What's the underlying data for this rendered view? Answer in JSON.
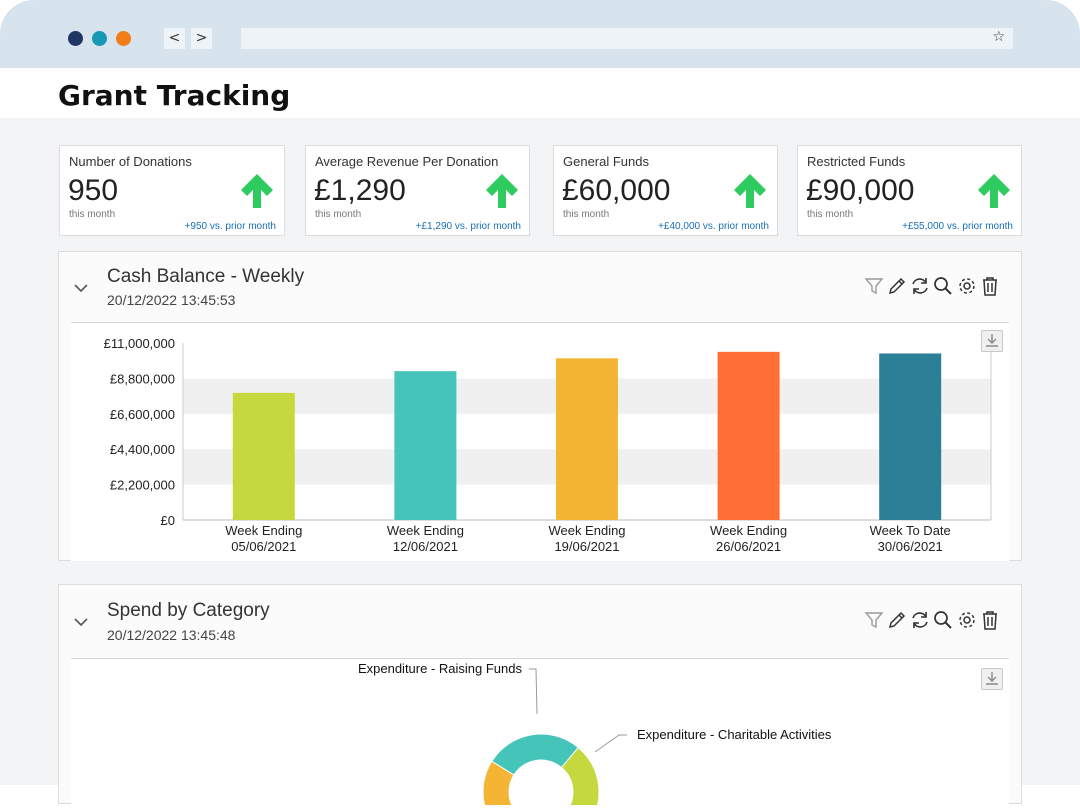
{
  "browser": {
    "dots": [
      {
        "name": "close",
        "color": "#1f3564"
      },
      {
        "name": "minimize",
        "color": "#1699b6"
      },
      {
        "name": "maximize",
        "color": "#f07d17"
      }
    ],
    "back_label": "<",
    "forward_label": ">",
    "bookmark_label": "☆"
  },
  "page": {
    "title": "Grant Tracking"
  },
  "kpis": [
    {
      "label": "Number of Donations",
      "value": "950",
      "sub": "this month",
      "change": "+950 vs. prior month",
      "arrow_color": "#2ecc5e"
    },
    {
      "label": "Average Revenue Per Donation",
      "value": "£1,290",
      "sub": "this month",
      "change": "+£1,290 vs. prior month",
      "arrow_color": "#2ecc5e"
    },
    {
      "label": "General Funds",
      "value": "£60,000",
      "sub": "this month",
      "change": "+£40,000 vs. prior month",
      "arrow_color": "#2ecc5e"
    },
    {
      "label": "Restricted Funds",
      "value": "£90,000",
      "sub": "this month",
      "change": "+£55,000 vs. prior month",
      "arrow_color": "#2ecc5e"
    }
  ],
  "panels": [
    {
      "title": "Cash Balance - Weekly",
      "timestamp": "20/12/2022 13:45:53"
    },
    {
      "title": "Spend by Category",
      "timestamp": "20/12/2022 13:45:48"
    }
  ],
  "toolbar_icons": [
    "filter-icon",
    "edit-icon",
    "refresh-icon",
    "search-icon",
    "settings-icon",
    "delete-icon"
  ],
  "chart_data": [
    {
      "type": "bar",
      "title": "Cash Balance - Weekly",
      "categories": [
        [
          "Week Ending",
          "05/06/2021"
        ],
        [
          "Week Ending",
          "12/06/2021"
        ],
        [
          "Week Ending",
          "19/06/2021"
        ],
        [
          "Week Ending",
          "26/06/2021"
        ],
        [
          "Week To Date",
          "30/06/2021"
        ]
      ],
      "values": [
        7900000,
        9250000,
        10050000,
        10450000,
        10350000
      ],
      "colors": [
        "#c5d83e",
        "#45c4b9",
        "#f4b535",
        "#ff6e35",
        "#2b7f96"
      ],
      "yticks": [
        "£0",
        "£2,200,000",
        "£4,400,000",
        "£6,600,000",
        "£8,800,000",
        "£11,000,000"
      ],
      "ylim": [
        0,
        11000000
      ],
      "grid": "banded"
    },
    {
      "type": "pie",
      "title": "Spend by Category",
      "series": [
        {
          "name": "Expenditure - Raising Funds",
          "color": "#45c4b9"
        },
        {
          "name": "Expenditure - Charitable Activities",
          "color": "#c5d83e"
        },
        {
          "name": "",
          "color": "#f4b535"
        }
      ]
    }
  ]
}
